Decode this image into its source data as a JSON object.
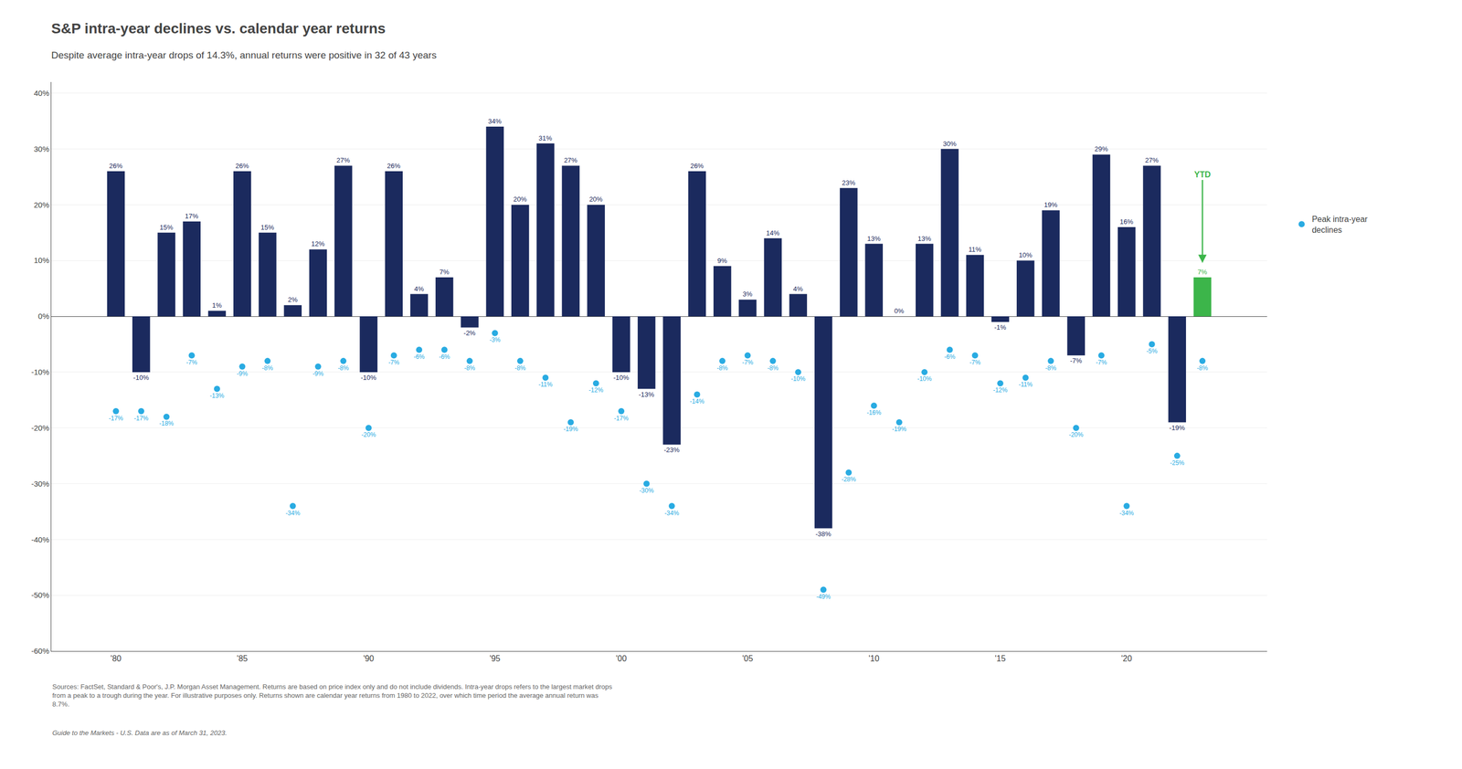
{
  "chart_data": {
    "type": "bar",
    "title": "S&P intra-year declines vs. calendar year returns",
    "subtitle": "Despite average intra-year drops of 14.3%, annual returns were positive in 32 of 43 years",
    "categories": [
      "'80",
      null,
      null,
      null,
      null,
      "'85",
      null,
      null,
      null,
      null,
      "'90",
      null,
      null,
      null,
      null,
      "'95",
      null,
      null,
      null,
      null,
      "'00",
      null,
      null,
      null,
      null,
      "'05",
      null,
      null,
      null,
      null,
      "'10",
      null,
      null,
      null,
      null,
      "'15",
      null,
      null,
      null,
      null,
      "'20",
      null,
      null,
      null
    ],
    "series": [
      {
        "type": "bar",
        "colors": [
          "#1b2a5e",
          "#1b2a5e",
          "#1b2a5e",
          "#1b2a5e",
          "#1b2a5e",
          "#1b2a5e",
          "#1b2a5e",
          "#1b2a5e",
          "#1b2a5e",
          "#1b2a5e",
          "#1b2a5e",
          "#1b2a5e",
          "#1b2a5e",
          "#1b2a5e",
          "#1b2a5e",
          "#1b2a5e",
          "#1b2a5e",
          "#1b2a5e",
          "#1b2a5e",
          "#1b2a5e",
          "#1b2a5e",
          "#1b2a5e",
          "#1b2a5e",
          "#1b2a5e",
          "#1b2a5e",
          "#1b2a5e",
          "#1b2a5e",
          "#1b2a5e",
          "#1b2a5e",
          "#1b2a5e",
          "#1b2a5e",
          "#1b2a5e",
          "#1b2a5e",
          "#1b2a5e",
          "#1b2a5e",
          "#1b2a5e",
          "#1b2a5e",
          "#1b2a5e",
          "#1b2a5e",
          "#1b2a5e",
          "#1b2a5e",
          "#1b2a5e",
          "#1b2a5e",
          "#3cb54a"
        ],
        "values": [
          26,
          -10,
          15,
          17,
          1,
          26,
          15,
          2,
          12,
          27,
          -10,
          26,
          4,
          7,
          -2,
          34,
          20,
          31,
          27,
          20,
          -10,
          -13,
          -23,
          26,
          9,
          3,
          14,
          4,
          -38,
          23,
          13,
          0,
          13,
          30,
          11,
          -1,
          10,
          19,
          -7,
          29,
          16,
          27,
          -19,
          7
        ],
        "value_labels": [
          "26%",
          "-10%",
          "15%",
          "17%",
          "1%",
          "26%",
          "15%",
          "2%",
          "12%",
          "27%",
          "-10%",
          "26%",
          "4%",
          "7%",
          "-2%",
          "34%",
          "20%",
          "31%",
          "27%",
          "20%",
          "-10%",
          "-13%",
          "-23%",
          "26%",
          "9%",
          "3%",
          "14%",
          "4%",
          "-38%",
          "23%",
          "13%",
          "0%",
          "13%",
          "30%",
          "11%",
          "-1%",
          "10%",
          "19%",
          "-7%",
          "29%",
          "16%",
          "27%",
          "-19%",
          "7%"
        ]
      },
      {
        "type": "scatter",
        "name": "Peak intra-year\ndeclines",
        "color": "#29abe2",
        "marker": "circle",
        "values": [
          -17,
          -17,
          -18,
          -7,
          -13,
          -9,
          -8,
          -34,
          -9,
          -8,
          -20,
          -7,
          -6,
          -6,
          -8,
          -3,
          -8,
          -11,
          -19,
          -12,
          -17,
          -30,
          -34,
          -14,
          -8,
          -7,
          -8,
          -10,
          -49,
          -28,
          -16,
          -19,
          -10,
          -6,
          -7,
          -12,
          -11,
          -8,
          -20,
          -7,
          -34,
          -5,
          -25,
          -8
        ],
        "value_labels": [
          "-17%",
          "-17%",
          "-18%",
          "-7%",
          "-13%",
          "-9%",
          "-8%",
          "-34%",
          "-9%",
          "-8%",
          "-20%",
          "-7%",
          "-6%",
          "-6%",
          "-8%",
          "-3%",
          "-8%",
          "-11%",
          "-19%",
          "-12%",
          "-17%",
          "-30%",
          "-34%",
          "-14%",
          "-8%",
          "-7%",
          "-8%",
          "-10%",
          "-49%",
          "-28%",
          "-16%",
          "-19%",
          "-10%",
          "-6%",
          "-7%",
          "-12%",
          "-11%",
          "-8%",
          "-20%",
          "-7%",
          "-34%",
          "-5%",
          "-25%",
          "-8%"
        ]
      }
    ],
    "annotations": [
      {
        "text": "YTD",
        "x": 43,
        "color": "#3cb54a"
      }
    ],
    "ylim": [
      -60,
      42
    ],
    "yticks": [
      {
        "value": -60,
        "label": "-60%"
      },
      {
        "value": -50,
        "label": "-50%"
      },
      {
        "value": -40,
        "label": "-40%"
      },
      {
        "value": -30,
        "label": "-30%"
      },
      {
        "value": -20,
        "label": "-20%"
      },
      {
        "value": -10,
        "label": "-10%"
      },
      {
        "value": 0,
        "label": "0%"
      },
      {
        "value": 10,
        "label": "10%"
      },
      {
        "value": 20,
        "label": "20%"
      },
      {
        "value": 30,
        "label": "30%"
      },
      {
        "value": 40,
        "label": "40%"
      }
    ],
    "grid": true,
    "legend": "right",
    "data_labels": true,
    "sources": [
      "Sources: FactSet, Standard & Poor's, J.P. Morgan Asset Management. Returns are based on price index only and do not include dividends. Intra-year drops refers to the largest market drops",
      "from a peak to a trough during the year. For illustrative purposes only. Returns shown are calendar year returns from 1980 to 2022, over which time period the average annual return was",
      "8.7%."
    ],
    "footer": "Guide to the Markets - U.S. Data are as of March 31, 2023."
  }
}
